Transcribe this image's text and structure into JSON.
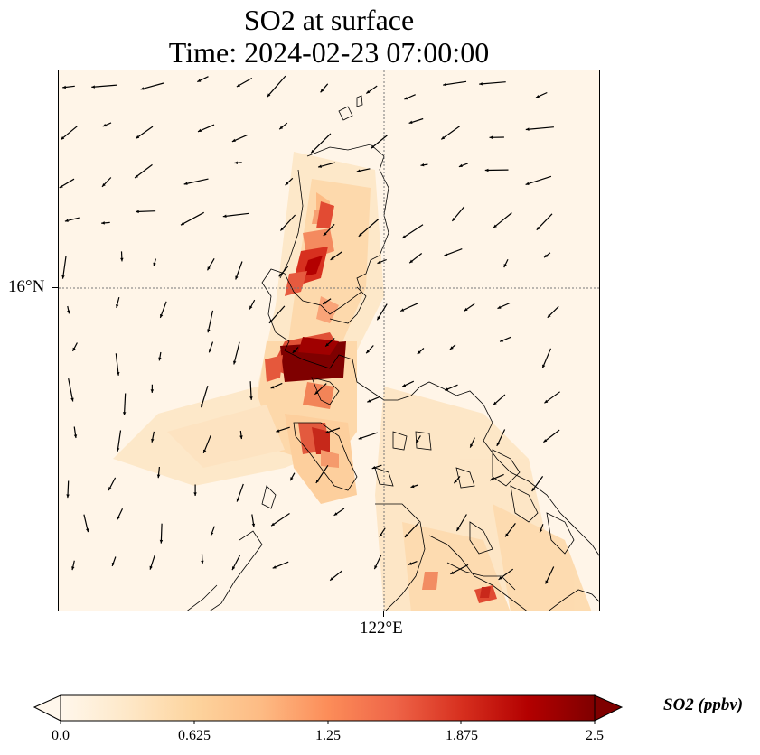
{
  "title": {
    "line1": "SO2 at surface",
    "line2": "Time: 2024-02-23 07:00:00"
  },
  "axes": {
    "lat_tick_label": "16°N",
    "lon_tick_label": "122°E",
    "gridline_style": "dotted"
  },
  "colorbar": {
    "label": "SO2 (ppbv)",
    "ticks": [
      "0.0",
      "0.625",
      "1.25",
      "1.875",
      "2.5"
    ],
    "range": [
      0.0,
      2.5
    ],
    "colormap": "OrRd",
    "extend": "both",
    "colors": [
      "#fff7ec",
      "#fee8c8",
      "#fdd49e",
      "#fdbb84",
      "#fc8d59",
      "#ef6548",
      "#d7301f",
      "#b30000",
      "#7f0000"
    ]
  },
  "map": {
    "background_color": "#fff5e8",
    "coastline_color": "#000000",
    "wind_vectors": "black quiver arrows"
  }
}
